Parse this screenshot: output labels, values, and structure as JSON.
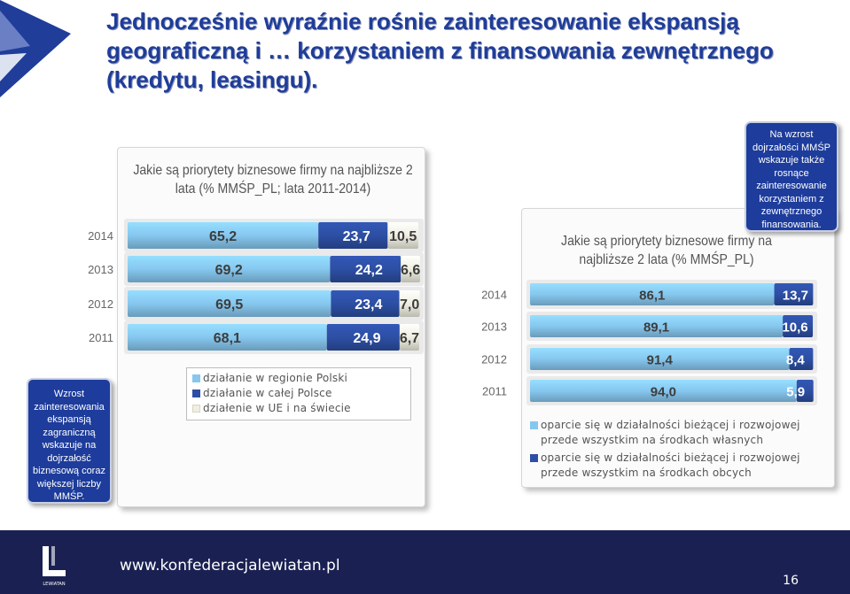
{
  "slide": {
    "title": "Jednocześnie wyraźnie rośnie zainteresowanie ekspansją geograficzną i … korzystaniem z finansowania zewnętrznego (kredytu, leasingu).",
    "callout_left": "Wzrost zainteresowania ekspansją zagraniczną wskazuje na dojrzałość biznesową coraz większej liczby MMŚP.",
    "callout_right": "Na wzrost dojrzałości MMŚP wskazuje także rosnące zainteresowanie korzystaniem z zewnętrznego finansowania.",
    "footer_url": "www.konfederacjalewiatan.pl",
    "page_number": "16",
    "footer_logo_text": "LEWIATAN"
  },
  "colors": {
    "title": "#1f3d99",
    "callout_bg": "#1d3c9b",
    "footer_bg": "#1a2152",
    "light_blue": "#86c7ef",
    "dark_blue": "#2d4fa3",
    "cream": "#f0eee2"
  },
  "chart_data": [
    {
      "type": "bar",
      "orientation": "horizontal",
      "stacked": true,
      "title": "Jakie są priorytety biznesowe firmy na najbliższe 2 lata (% MMŚP_PL; lata 2011-2014)",
      "categories": [
        "2014",
        "2013",
        "2012",
        "2011"
      ],
      "series": [
        {
          "name": "działanie w regionie Polski",
          "values": [
            65.2,
            69.2,
            69.5,
            68.1
          ],
          "labels": [
            "65,2",
            "69,2",
            "69,5",
            "68,1"
          ],
          "color": "#86c7ef"
        },
        {
          "name": "działanie w całej Polsce",
          "values": [
            23.7,
            24.2,
            23.4,
            24.9
          ],
          "labels": [
            "23,7",
            "24,2",
            "23,4",
            "24,9"
          ],
          "color": "#2d4fa3"
        },
        {
          "name": "działenie w UE i na świecie",
          "values": [
            10.5,
            6.6,
            7.0,
            6.7
          ],
          "labels": [
            "10,5",
            "6,6",
            "7,0",
            "6,7"
          ],
          "color": "#f0eee2"
        }
      ],
      "xlim": [
        0,
        100
      ],
      "grid": false,
      "legend": "bottom"
    },
    {
      "type": "bar",
      "orientation": "horizontal",
      "stacked": true,
      "title": "Jakie są priorytety biznesowe firmy na najbliższe 2 lata (% MMŚP_PL)",
      "categories": [
        "2014",
        "2013",
        "2012",
        "2011"
      ],
      "series": [
        {
          "name": "oparcie się w działalności bieżącej i rozwojowej przede wszystkim na środkach własnych",
          "values": [
            86.1,
            89.1,
            91.4,
            94.0
          ],
          "labels": [
            "86,1",
            "89,1",
            "91,4",
            "94,0"
          ],
          "color": "#86c7ef"
        },
        {
          "name": "oparcie się w działalności bieżącej i rozwojowej przede wszystkim na środkach obcych",
          "values": [
            13.7,
            10.6,
            8.4,
            5.9
          ],
          "labels": [
            "13,7",
            "10,6",
            "8,4",
            "5,9"
          ],
          "color": "#2d4fa3"
        }
      ],
      "xlim": [
        0,
        100
      ],
      "grid": false,
      "legend": "bottom"
    }
  ]
}
